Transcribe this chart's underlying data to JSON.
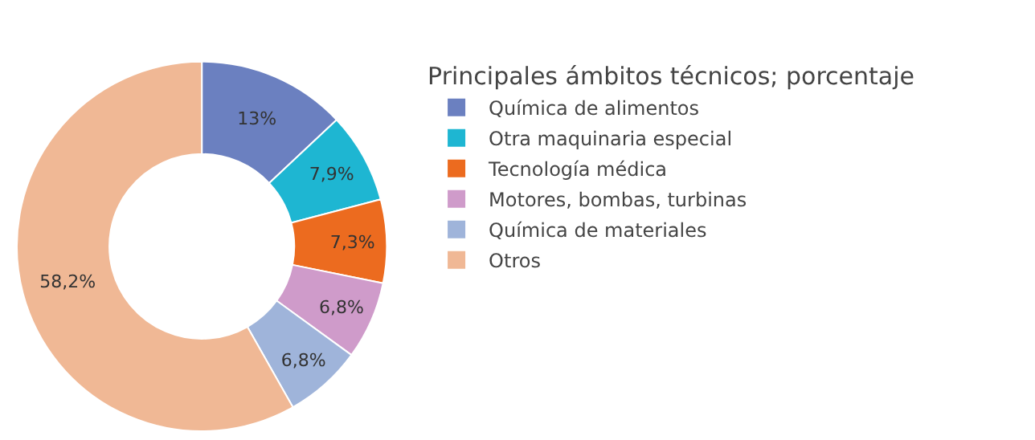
{
  "chart_data": {
    "type": "donut",
    "legend_title": "Principales ámbitos técnicos; porcentaje",
    "legend": "right",
    "categories": [
      "Química de alimentos",
      "Otra maquinaria especial",
      "Tecnología médica",
      "Motores, bombas, turbinas",
      "Química de materiales",
      "Otros"
    ],
    "values": [
      13,
      7.9,
      7.3,
      6.8,
      6.8,
      58.2
    ],
    "value_labels": [
      "13%",
      "7,9%",
      "7,3%",
      "6,8%",
      "6,8%",
      "58,2%"
    ],
    "colors": [
      "#6b80c0",
      "#1eb6d2",
      "#ec6b1f",
      "#cf9bca",
      "#9fb4da",
      "#f0b895"
    ]
  }
}
